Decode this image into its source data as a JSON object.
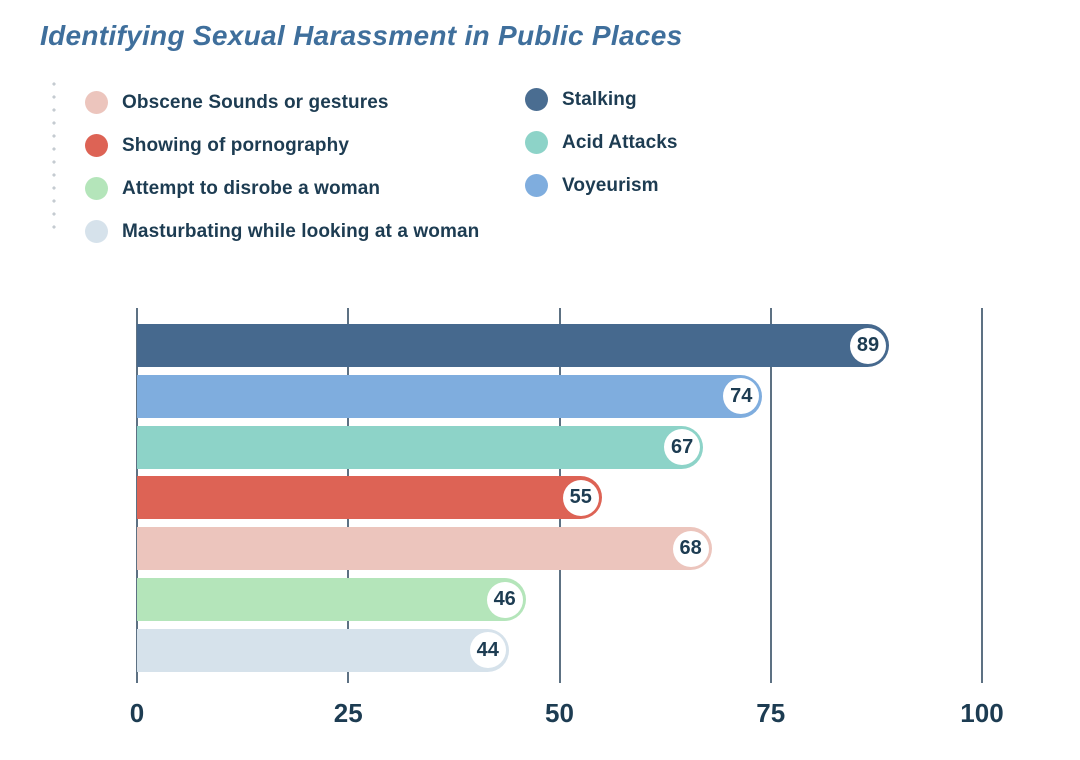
{
  "title": "Identifying Sexual Harassment in Public Places",
  "colors": {
    "title_text": "#3f6f9c",
    "body_text": "#1d3c52",
    "gridline": "#5d7183",
    "dotted_divider": "#c5cbd1",
    "badge_fill": "#ffffff"
  },
  "legend": {
    "columns": [
      [
        {
          "label": "Obscene Sounds or gestures",
          "color": "#ecc5bd"
        },
        {
          "label": "Showing of pornography",
          "color": "#dd6355"
        },
        {
          "label": "Attempt to disrobe a woman",
          "color": "#b4e5ba"
        },
        {
          "label": "Masturbating while looking at a woman",
          "color": "#d6e2eb"
        }
      ],
      [
        {
          "label": "Stalking",
          "color": "#4a6d91"
        },
        {
          "label": "Acid Attacks",
          "color": "#8dd3c8"
        },
        {
          "label": "Voyeurism",
          "color": "#7fadde"
        }
      ]
    ]
  },
  "chart_data": {
    "type": "bar",
    "orientation": "horizontal",
    "title": "Identifying Sexual Harassment in Public Places",
    "categories": [
      "Stalking",
      "Voyeurism",
      "Acid Attacks",
      "Showing of pornography",
      "Obscene Sounds or gestures",
      "Attempt to disrobe a woman",
      "Masturbating while looking at a woman"
    ],
    "values": [
      89,
      74,
      67,
      55,
      68,
      46,
      44
    ],
    "bars": [
      {
        "label": "Stalking",
        "value": 89,
        "color": "#46698e"
      },
      {
        "label": "Voyeurism",
        "value": 74,
        "color": "#7fadde"
      },
      {
        "label": "Acid Attacks",
        "value": 67,
        "color": "#8dd3c8"
      },
      {
        "label": "Showing of pornography",
        "value": 55,
        "color": "#dd6355"
      },
      {
        "label": "Obscene Sounds or gestures",
        "value": 68,
        "color": "#ecc5bd"
      },
      {
        "label": "Attempt to disrobe a woman",
        "value": 46,
        "color": "#b4e5ba"
      },
      {
        "label": "Masturbating while looking at a woman",
        "value": 44,
        "color": "#d6e2eb"
      }
    ],
    "x_ticks": [
      "0",
      "25",
      "50",
      "75",
      "100"
    ],
    "xlim": [
      0,
      100
    ],
    "grid": true,
    "legend_position": "top-left",
    "value_labels": "circle-badge-at-bar-end"
  }
}
